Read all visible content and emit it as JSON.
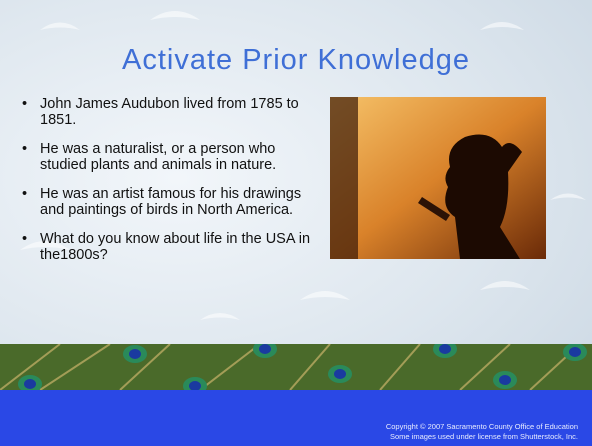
{
  "slide": {
    "title": "Activate Prior Knowledge",
    "bullets": [
      "John James Audubon lived from 1785 to 1851.",
      "He was a naturalist, or a person who studied plants and animals in nature.",
      "He was an artist famous for his drawings and paintings of birds in North America.",
      "What do you know about life in the USA in the1800s?"
    ],
    "footer": [
      "Copyright © 2007 Sacramento County Office of Education",
      "Some images used under license from Shutterstock, Inc."
    ]
  }
}
